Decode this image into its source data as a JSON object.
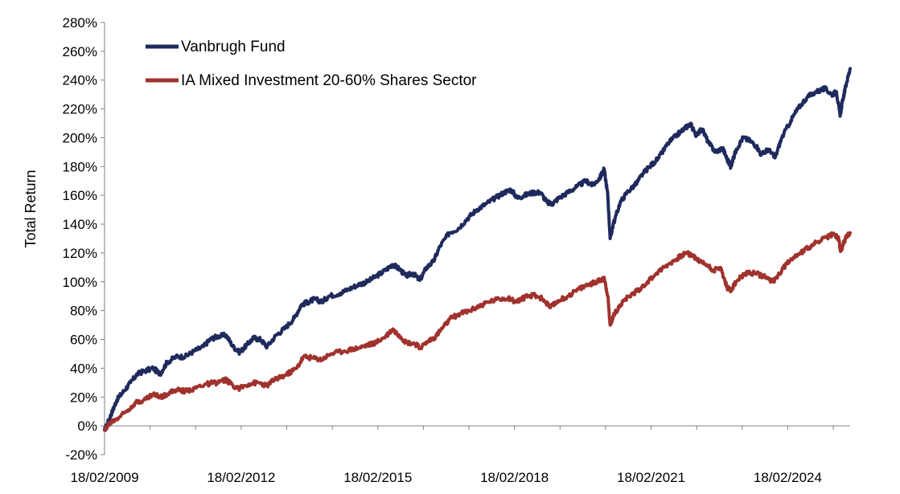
{
  "chart_data": {
    "type": "line",
    "title": "",
    "xlabel": "",
    "ylabel": "Total Return",
    "ylim": [
      -20,
      280
    ],
    "y_ticks": [
      "280%",
      "260%",
      "240%",
      "220%",
      "200%",
      "180%",
      "160%",
      "140%",
      "120%",
      "100%",
      "80%",
      "60%",
      "40%",
      "20%",
      "0%",
      "-20%"
    ],
    "x_ticks": [
      "18/02/2009",
      "18/02/2012",
      "18/02/2015",
      "18/02/2018",
      "18/02/2021",
      "18/02/2024"
    ],
    "x_range_years": [
      2009.13,
      2025.5
    ],
    "grid": false,
    "legend_position": "top-left",
    "series": [
      {
        "name": "Vanbrugh Fund",
        "color": "#1f2a5c",
        "points": [
          [
            2009.13,
            -3
          ],
          [
            2009.2,
            2
          ],
          [
            2009.3,
            10
          ],
          [
            2009.4,
            18
          ],
          [
            2009.55,
            24
          ],
          [
            2009.7,
            30
          ],
          [
            2009.85,
            36
          ],
          [
            2010.0,
            38
          ],
          [
            2010.2,
            40
          ],
          [
            2010.35,
            36
          ],
          [
            2010.5,
            44
          ],
          [
            2010.7,
            48
          ],
          [
            2010.9,
            48
          ],
          [
            2011.1,
            52
          ],
          [
            2011.3,
            55
          ],
          [
            2011.45,
            60
          ],
          [
            2011.6,
            62
          ],
          [
            2011.8,
            63
          ],
          [
            2011.95,
            55
          ],
          [
            2012.1,
            51
          ],
          [
            2012.25,
            56
          ],
          [
            2012.4,
            61
          ],
          [
            2012.55,
            60
          ],
          [
            2012.7,
            55
          ],
          [
            2012.9,
            63
          ],
          [
            2013.1,
            68
          ],
          [
            2013.3,
            75
          ],
          [
            2013.45,
            84
          ],
          [
            2013.6,
            86
          ],
          [
            2013.75,
            88
          ],
          [
            2013.9,
            86
          ],
          [
            2014.05,
            90
          ],
          [
            2014.3,
            92
          ],
          [
            2014.5,
            95
          ],
          [
            2014.7,
            98
          ],
          [
            2014.9,
            100
          ],
          [
            2015.1,
            104
          ],
          [
            2015.3,
            108
          ],
          [
            2015.45,
            112
          ],
          [
            2015.6,
            109
          ],
          [
            2015.75,
            104
          ],
          [
            2015.9,
            106
          ],
          [
            2016.05,
            101
          ],
          [
            2016.2,
            110
          ],
          [
            2016.35,
            114
          ],
          [
            2016.5,
            125
          ],
          [
            2016.7,
            134
          ],
          [
            2016.9,
            137
          ],
          [
            2017.1,
            144
          ],
          [
            2017.3,
            150
          ],
          [
            2017.5,
            154
          ],
          [
            2017.7,
            158
          ],
          [
            2017.9,
            162
          ],
          [
            2018.05,
            164
          ],
          [
            2018.2,
            158
          ],
          [
            2018.35,
            160
          ],
          [
            2018.55,
            162
          ],
          [
            2018.7,
            162
          ],
          [
            2018.85,
            155
          ],
          [
            2018.95,
            154
          ],
          [
            2019.1,
            158
          ],
          [
            2019.3,
            162
          ],
          [
            2019.5,
            166
          ],
          [
            2019.7,
            170
          ],
          [
            2019.85,
            167
          ],
          [
            2020.0,
            172
          ],
          [
            2020.1,
            178
          ],
          [
            2020.18,
            160
          ],
          [
            2020.23,
            130
          ],
          [
            2020.3,
            140
          ],
          [
            2020.45,
            155
          ],
          [
            2020.6,
            162
          ],
          [
            2020.8,
            168
          ],
          [
            2020.95,
            175
          ],
          [
            2021.1,
            180
          ],
          [
            2021.3,
            186
          ],
          [
            2021.5,
            196
          ],
          [
            2021.7,
            202
          ],
          [
            2021.85,
            206
          ],
          [
            2022.0,
            210
          ],
          [
            2022.1,
            202
          ],
          [
            2022.25,
            206
          ],
          [
            2022.4,
            196
          ],
          [
            2022.55,
            190
          ],
          [
            2022.7,
            193
          ],
          [
            2022.8,
            185
          ],
          [
            2022.88,
            180
          ],
          [
            2023.0,
            192
          ],
          [
            2023.15,
            200
          ],
          [
            2023.3,
            198
          ],
          [
            2023.45,
            194
          ],
          [
            2023.55,
            188
          ],
          [
            2023.7,
            192
          ],
          [
            2023.85,
            186
          ],
          [
            2024.0,
            200
          ],
          [
            2024.2,
            212
          ],
          [
            2024.35,
            220
          ],
          [
            2024.55,
            228
          ],
          [
            2024.75,
            232
          ],
          [
            2024.95,
            234
          ],
          [
            2025.1,
            230
          ],
          [
            2025.2,
            232
          ],
          [
            2025.28,
            215
          ],
          [
            2025.33,
            225
          ],
          [
            2025.42,
            238
          ],
          [
            2025.5,
            248
          ]
        ]
      },
      {
        "name": "IA Mixed Investment 20-60% Shares Sector",
        "color": "#a0322d",
        "points": [
          [
            2009.13,
            -3
          ],
          [
            2009.25,
            2
          ],
          [
            2009.4,
            5
          ],
          [
            2009.6,
            10
          ],
          [
            2009.8,
            16
          ],
          [
            2010.0,
            18
          ],
          [
            2010.2,
            22
          ],
          [
            2010.35,
            20
          ],
          [
            2010.5,
            22
          ],
          [
            2010.7,
            25
          ],
          [
            2010.9,
            24
          ],
          [
            2011.1,
            26
          ],
          [
            2011.35,
            29
          ],
          [
            2011.6,
            30
          ],
          [
            2011.8,
            32
          ],
          [
            2011.95,
            28
          ],
          [
            2012.1,
            26
          ],
          [
            2012.3,
            29
          ],
          [
            2012.5,
            30
          ],
          [
            2012.7,
            28
          ],
          [
            2012.9,
            33
          ],
          [
            2013.1,
            35
          ],
          [
            2013.35,
            40
          ],
          [
            2013.5,
            48
          ],
          [
            2013.7,
            47
          ],
          [
            2013.9,
            46
          ],
          [
            2014.1,
            50
          ],
          [
            2014.4,
            52
          ],
          [
            2014.7,
            54
          ],
          [
            2014.9,
            56
          ],
          [
            2015.1,
            58
          ],
          [
            2015.3,
            62
          ],
          [
            2015.45,
            67
          ],
          [
            2015.6,
            63
          ],
          [
            2015.75,
            58
          ],
          [
            2015.95,
            57
          ],
          [
            2016.05,
            54
          ],
          [
            2016.25,
            59
          ],
          [
            2016.4,
            62
          ],
          [
            2016.55,
            68
          ],
          [
            2016.75,
            75
          ],
          [
            2016.95,
            78
          ],
          [
            2017.15,
            80
          ],
          [
            2017.35,
            83
          ],
          [
            2017.55,
            86
          ],
          [
            2017.8,
            88
          ],
          [
            2018.0,
            89
          ],
          [
            2018.15,
            86
          ],
          [
            2018.35,
            89
          ],
          [
            2018.55,
            91
          ],
          [
            2018.75,
            88
          ],
          [
            2018.92,
            82
          ],
          [
            2019.1,
            87
          ],
          [
            2019.3,
            90
          ],
          [
            2019.55,
            95
          ],
          [
            2019.75,
            98
          ],
          [
            2019.95,
            100
          ],
          [
            2020.1,
            103
          ],
          [
            2020.18,
            90
          ],
          [
            2020.23,
            70
          ],
          [
            2020.3,
            76
          ],
          [
            2020.45,
            84
          ],
          [
            2020.65,
            90
          ],
          [
            2020.85,
            94
          ],
          [
            2021.05,
            100
          ],
          [
            2021.25,
            106
          ],
          [
            2021.5,
            112
          ],
          [
            2021.7,
            116
          ],
          [
            2021.9,
            120
          ],
          [
            2022.05,
            118
          ],
          [
            2022.2,
            114
          ],
          [
            2022.35,
            112
          ],
          [
            2022.5,
            108
          ],
          [
            2022.65,
            110
          ],
          [
            2022.8,
            96
          ],
          [
            2022.88,
            94
          ],
          [
            2023.0,
            100
          ],
          [
            2023.2,
            106
          ],
          [
            2023.4,
            106
          ],
          [
            2023.6,
            104
          ],
          [
            2023.8,
            100
          ],
          [
            2024.0,
            108
          ],
          [
            2024.2,
            116
          ],
          [
            2024.4,
            120
          ],
          [
            2024.6,
            124
          ],
          [
            2024.8,
            128
          ],
          [
            2025.0,
            131
          ],
          [
            2025.15,
            133
          ],
          [
            2025.25,
            130
          ],
          [
            2025.29,
            121
          ],
          [
            2025.35,
            126
          ],
          [
            2025.42,
            132
          ],
          [
            2025.5,
            134
          ]
        ]
      }
    ]
  }
}
